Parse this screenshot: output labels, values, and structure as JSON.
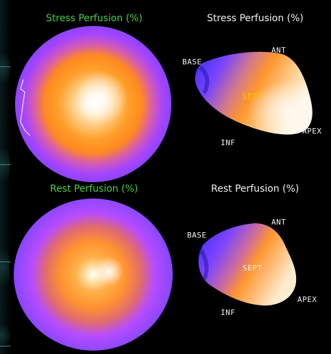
{
  "top_left_title": "Stress Perfusion (%)",
  "top_right_title": "Stress Perfusion (%)",
  "bottom_left_title": "Rest Perfusion (%)",
  "bottom_right_title": "Rest Perfusion (%)",
  "labels": {
    "stress": {
      "base": "BASE",
      "ant": "ANT",
      "sept": "SEPT",
      "apex": "APEX",
      "inf": "INF"
    },
    "rest": {
      "base": "BASE",
      "ant": "ANT",
      "sept": "SEPT",
      "apex": "APEX",
      "inf": "INF"
    }
  },
  "colors": {
    "title_green": "#46d146",
    "title_white": "#f2f2f2",
    "label_sept": "#f5c400",
    "perfusion_high": "#ffffff",
    "perfusion_mid": "#ff8a1f",
    "perfusion_low": "#5a2cff"
  }
}
